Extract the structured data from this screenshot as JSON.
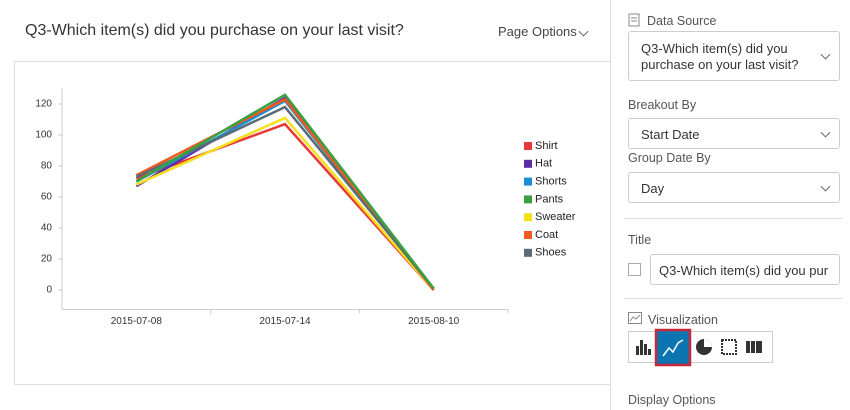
{
  "header": {
    "title": "Q3-Which item(s) did you purchase on your last visit?",
    "page_options": "Page Options"
  },
  "chart_data": {
    "type": "line",
    "categories": [
      "2015-07-08",
      "2015-07-14",
      "2015-08-10"
    ],
    "series": [
      {
        "name": "Shirt",
        "color": "#e8393a",
        "values": [
          72,
          107,
          0
        ]
      },
      {
        "name": "Hat",
        "color": "#5e2ca5",
        "values": [
          67,
          124,
          0
        ]
      },
      {
        "name": "Shorts",
        "color": "#1a8fd6",
        "values": [
          70,
          122,
          0
        ]
      },
      {
        "name": "Sweater",
        "color": "#f5e01b",
        "values": [
          68,
          111,
          0
        ]
      },
      {
        "name": "Coat",
        "color": "#f05a1e",
        "values": [
          74,
          123,
          0
        ]
      },
      {
        "name": "Shoes",
        "color": "#5a6b78",
        "values": [
          73,
          118,
          1
        ]
      },
      {
        "name": "Pants",
        "color": "#3aa142",
        "values": [
          70,
          126,
          1
        ]
      }
    ],
    "ylim": [
      -10,
      130
    ],
    "yticks": [
      0,
      20,
      40,
      60,
      80,
      100,
      120
    ],
    "legend": "right"
  },
  "sidebar": {
    "data_source_label": "Data Source",
    "data_source": "Q3-Which item(s) did you purchase on your last visit?",
    "breakout_label": "Breakout By",
    "breakout": "Start Date",
    "group_label": "Group Date By",
    "group": "Day",
    "title_label": "Title",
    "title_value": "Q3-Which item(s) did you pur",
    "visualization_label": "Visualization",
    "display_options_label": "Display Options"
  }
}
